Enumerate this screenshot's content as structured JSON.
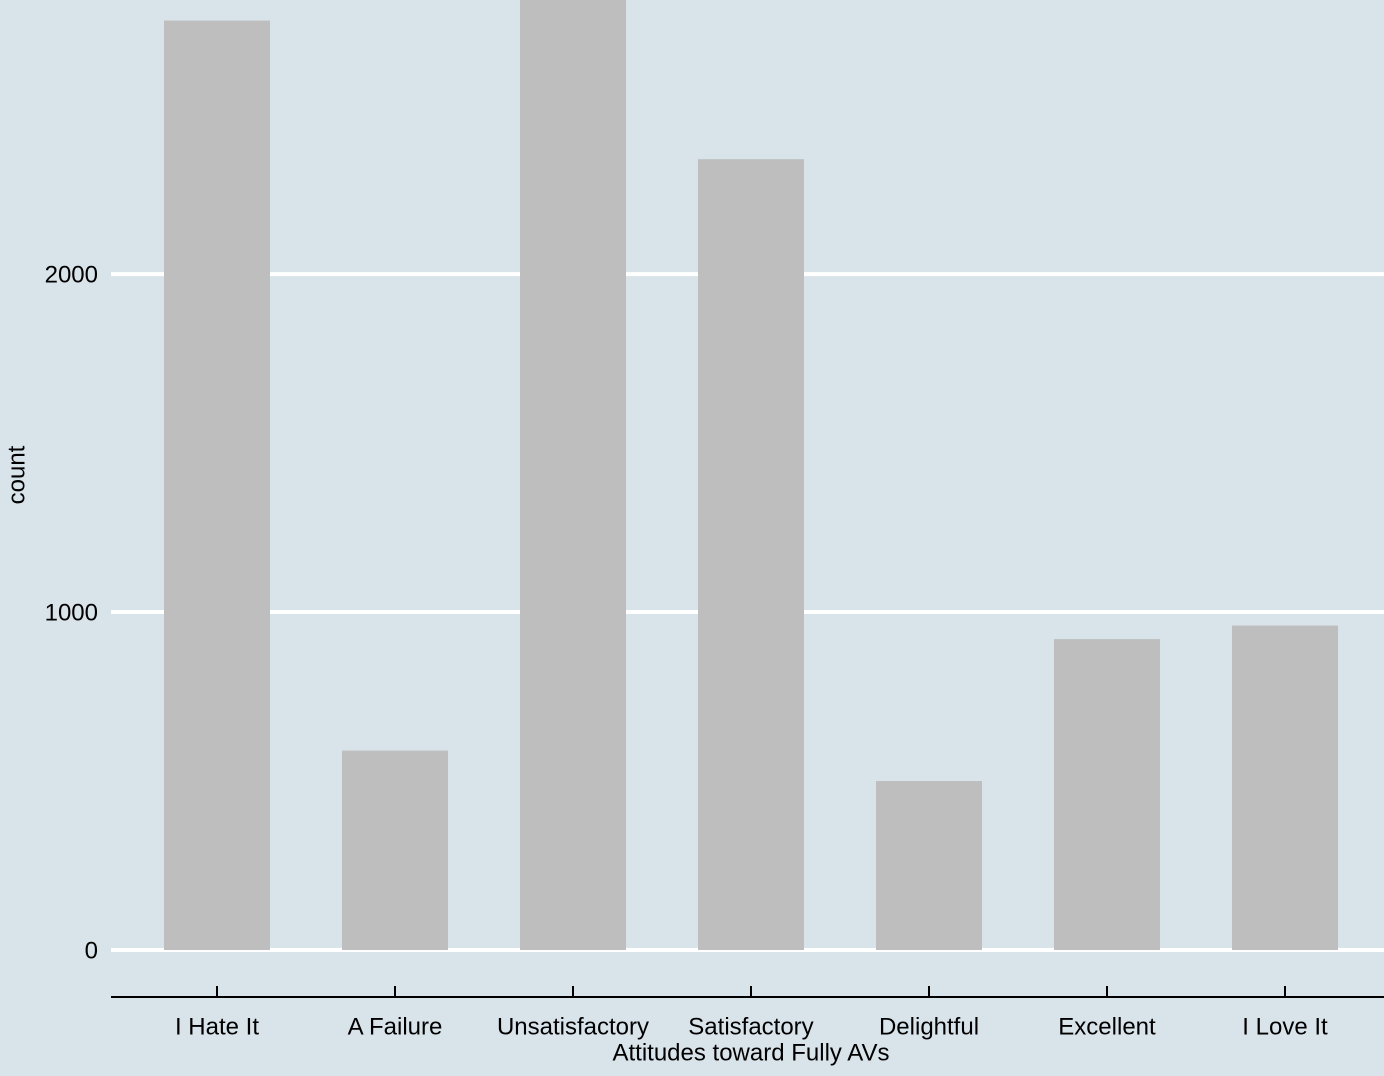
{
  "chart_data": {
    "type": "bar",
    "x_label": "Attitudes toward Fully AVs",
    "y_label": "count",
    "categories": [
      "I Hate It",
      "A Failure",
      "Unsatisfactory",
      "Satisfactory",
      "Delightful",
      "Excellent",
      "I Love It"
    ],
    "values": [
      2750,
      590,
      2900,
      2340,
      500,
      920,
      960
    ],
    "color": "#bebebe",
    "ylim": [
      -139,
      2811
    ],
    "yticks": [
      0,
      1000,
      2000
    ],
    "grid": true
  }
}
